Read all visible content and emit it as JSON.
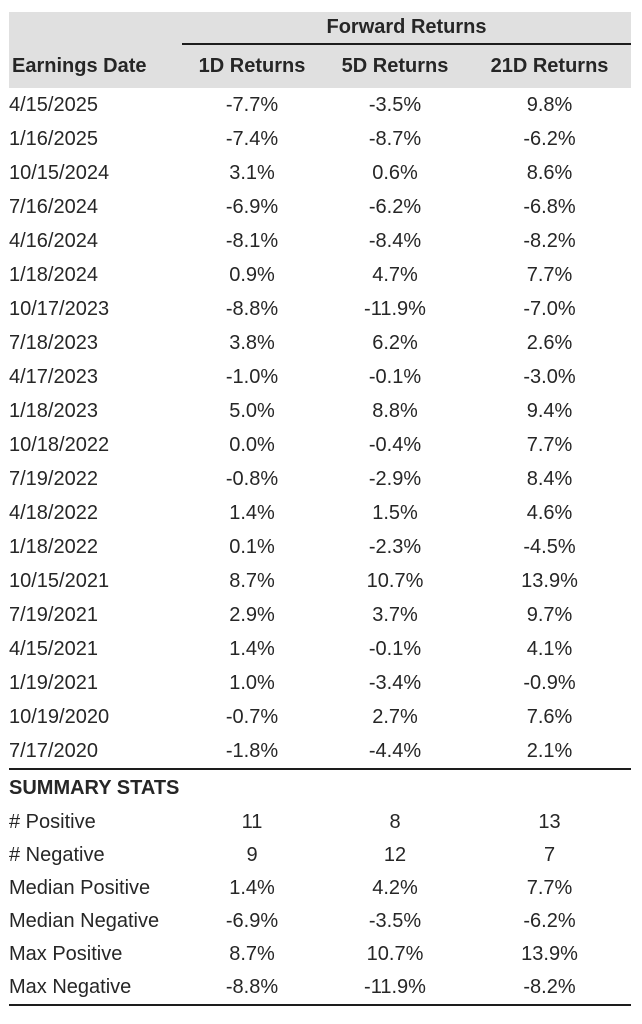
{
  "table": {
    "group_header": "Forward Returns",
    "columns": [
      "Earnings Date",
      "1D Returns",
      "5D Returns",
      "21D Returns"
    ],
    "rows": [
      {
        "date": "4/15/2025",
        "d1": "-7.7%",
        "d5": "-3.5%",
        "d21": "9.8%"
      },
      {
        "date": "1/16/2025",
        "d1": "-7.4%",
        "d5": "-8.7%",
        "d21": "-6.2%"
      },
      {
        "date": "10/15/2024",
        "d1": "3.1%",
        "d5": "0.6%",
        "d21": "8.6%"
      },
      {
        "date": "7/16/2024",
        "d1": "-6.9%",
        "d5": "-6.2%",
        "d21": "-6.8%"
      },
      {
        "date": "4/16/2024",
        "d1": "-8.1%",
        "d5": "-8.4%",
        "d21": "-8.2%"
      },
      {
        "date": "1/18/2024",
        "d1": "0.9%",
        "d5": "4.7%",
        "d21": "7.7%"
      },
      {
        "date": "10/17/2023",
        "d1": "-8.8%",
        "d5": "-11.9%",
        "d21": "-7.0%"
      },
      {
        "date": "7/18/2023",
        "d1": "3.8%",
        "d5": "6.2%",
        "d21": "2.6%"
      },
      {
        "date": "4/17/2023",
        "d1": "-1.0%",
        "d5": "-0.1%",
        "d21": "-3.0%"
      },
      {
        "date": "1/18/2023",
        "d1": "5.0%",
        "d5": "8.8%",
        "d21": "9.4%"
      },
      {
        "date": "10/18/2022",
        "d1": "0.0%",
        "d5": "-0.4%",
        "d21": "7.7%"
      },
      {
        "date": "7/19/2022",
        "d1": "-0.8%",
        "d5": "-2.9%",
        "d21": "8.4%"
      },
      {
        "date": "4/18/2022",
        "d1": "1.4%",
        "d5": "1.5%",
        "d21": "4.6%"
      },
      {
        "date": "1/18/2022",
        "d1": "0.1%",
        "d5": "-2.3%",
        "d21": "-4.5%"
      },
      {
        "date": "10/15/2021",
        "d1": "8.7%",
        "d5": "10.7%",
        "d21": "13.9%"
      },
      {
        "date": "7/19/2021",
        "d1": "2.9%",
        "d5": "3.7%",
        "d21": "9.7%"
      },
      {
        "date": "4/15/2021",
        "d1": "1.4%",
        "d5": "-0.1%",
        "d21": "4.1%"
      },
      {
        "date": "1/19/2021",
        "d1": "1.0%",
        "d5": "-3.4%",
        "d21": "-0.9%"
      },
      {
        "date": "10/19/2020",
        "d1": "-0.7%",
        "d5": "2.7%",
        "d21": "7.6%"
      },
      {
        "date": "7/17/2020",
        "d1": "-1.8%",
        "d5": "-4.4%",
        "d21": "2.1%"
      }
    ],
    "summary_title": "SUMMARY STATS",
    "summary_rows": [
      {
        "label": "# Positive",
        "d1": "11",
        "d5": "8",
        "d21": "13"
      },
      {
        "label": "# Negative",
        "d1": "9",
        "d5": "12",
        "d21": "7"
      },
      {
        "label": "Median Positive",
        "d1": "1.4%",
        "d5": "4.2%",
        "d21": "7.7%"
      },
      {
        "label": "Median Negative",
        "d1": "-6.9%",
        "d5": "-3.5%",
        "d21": "-6.2%"
      },
      {
        "label": "Max Positive",
        "d1": "8.7%",
        "d5": "10.7%",
        "d21": "13.9%"
      },
      {
        "label": "Max Negative",
        "d1": "-8.8%",
        "d5": "-11.9%",
        "d21": "-8.2%"
      }
    ],
    "colors": {
      "header_bg": "#e0e0e0",
      "text": "#262626",
      "rule": "#1d1d1d"
    }
  },
  "chart_data": {
    "type": "table",
    "title": "Forward Returns",
    "columns": [
      "Earnings Date",
      "1D Returns",
      "5D Returns",
      "21D Returns"
    ],
    "x": [
      "4/15/2025",
      "1/16/2025",
      "10/15/2024",
      "7/16/2024",
      "4/16/2024",
      "1/18/2024",
      "10/17/2023",
      "7/18/2023",
      "4/17/2023",
      "1/18/2023",
      "10/18/2022",
      "7/19/2022",
      "4/18/2022",
      "1/18/2022",
      "10/15/2021",
      "7/19/2021",
      "4/15/2021",
      "1/19/2021",
      "10/19/2020",
      "7/17/2020"
    ],
    "series": [
      {
        "name": "1D Returns (%)",
        "values": [
          -7.7,
          -7.4,
          3.1,
          -6.9,
          -8.1,
          0.9,
          -8.8,
          3.8,
          -1.0,
          5.0,
          0.0,
          -0.8,
          1.4,
          0.1,
          8.7,
          2.9,
          1.4,
          1.0,
          -0.7,
          -1.8
        ]
      },
      {
        "name": "5D Returns (%)",
        "values": [
          -3.5,
          -8.7,
          0.6,
          -6.2,
          -8.4,
          4.7,
          -11.9,
          6.2,
          -0.1,
          8.8,
          -0.4,
          -2.9,
          1.5,
          -2.3,
          10.7,
          3.7,
          -0.1,
          -3.4,
          2.7,
          -4.4
        ]
      },
      {
        "name": "21D Returns (%)",
        "values": [
          9.8,
          -6.2,
          8.6,
          -6.8,
          -8.2,
          7.7,
          -7.0,
          2.6,
          -3.0,
          9.4,
          7.7,
          8.4,
          4.6,
          -4.5,
          13.9,
          9.7,
          4.1,
          -0.9,
          7.6,
          2.1
        ]
      }
    ],
    "summary_stats": {
      "labels": [
        "# Positive",
        "# Negative",
        "Median Positive",
        "Median Negative",
        "Max Positive",
        "Max Negative"
      ],
      "1D": [
        11,
        9,
        1.4,
        -6.9,
        8.7,
        -8.8
      ],
      "5D": [
        8,
        12,
        4.2,
        -3.5,
        10.7,
        -11.9
      ],
      "21D": [
        13,
        7,
        7.7,
        -6.2,
        13.9,
        -8.2
      ]
    }
  }
}
